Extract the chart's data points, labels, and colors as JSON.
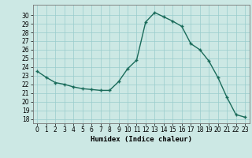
{
  "x": [
    0,
    1,
    2,
    3,
    4,
    5,
    6,
    7,
    8,
    9,
    10,
    11,
    12,
    13,
    14,
    15,
    16,
    17,
    18,
    19,
    20,
    21,
    22,
    23
  ],
  "y": [
    23.5,
    22.8,
    22.2,
    22.0,
    21.7,
    21.5,
    21.4,
    21.3,
    21.3,
    22.3,
    23.8,
    24.8,
    29.2,
    30.3,
    29.8,
    29.3,
    28.7,
    26.7,
    26.0,
    24.7,
    22.8,
    20.5,
    18.5,
    18.2
  ],
  "line_color": "#1a6b5a",
  "marker": "+",
  "bg_color": "#cce8e4",
  "grid_color": "#99cccc",
  "xlabel": "Humidex (Indice chaleur)",
  "xlim": [
    -0.5,
    23.5
  ],
  "ylim": [
    17.5,
    31.2
  ],
  "yticks": [
    18,
    19,
    20,
    21,
    22,
    23,
    24,
    25,
    26,
    27,
    28,
    29,
    30
  ],
  "xticks": [
    0,
    1,
    2,
    3,
    4,
    5,
    6,
    7,
    8,
    9,
    10,
    11,
    12,
    13,
    14,
    15,
    16,
    17,
    18,
    19,
    20,
    21,
    22,
    23
  ],
  "tick_fontsize": 5.5,
  "xlabel_fontsize": 6.5,
  "linewidth": 1.0,
  "markersize": 3.5,
  "markeredgewidth": 1.0
}
